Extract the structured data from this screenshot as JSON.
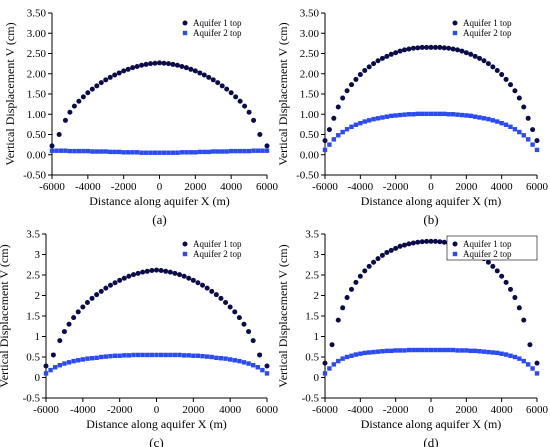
{
  "colors": {
    "aquifer1": "#0b0b4a",
    "aquifer2": "#2a4bf0",
    "axis": "#000000"
  },
  "chart_data": [
    {
      "type": "scatter",
      "caption": "(a)",
      "xlabel": "Distance along aquifer X (m)",
      "ylabel": "Vertical Displacement V (cm)",
      "xlim": [
        -6000,
        6000
      ],
      "ylim": [
        -0.5,
        3.5
      ],
      "xticks": [
        "-6000",
        "-4000",
        "-2000",
        "0",
        "2000",
        "4000",
        "6000"
      ],
      "yticks": [
        "-0.50",
        "0.00",
        "0.50",
        "1.00",
        "1.50",
        "2.00",
        "2.50",
        "3.00",
        "3.50"
      ],
      "legend_position": "top-right",
      "series": [
        {
          "name": "Aquifer 1 top",
          "marker": "circle",
          "x": [
            -6000,
            -5600,
            -5250,
            -5000,
            -4750,
            -4500,
            -4250,
            -4000,
            -3750,
            -3500,
            -3250,
            -3000,
            -2750,
            -2500,
            -2250,
            -2000,
            -1750,
            -1500,
            -1250,
            -1000,
            -750,
            -500,
            -250,
            0,
            250,
            500,
            750,
            1000,
            1250,
            1500,
            1750,
            2000,
            2250,
            2500,
            2750,
            3000,
            3250,
            3500,
            3750,
            4000,
            4250,
            4500,
            4750,
            5000,
            5250,
            5600,
            6000
          ],
          "y": [
            0.22,
            0.5,
            0.85,
            1.05,
            1.2,
            1.32,
            1.43,
            1.53,
            1.62,
            1.7,
            1.78,
            1.85,
            1.91,
            1.97,
            2.02,
            2.07,
            2.11,
            2.15,
            2.18,
            2.21,
            2.23,
            2.25,
            2.26,
            2.27,
            2.26,
            2.25,
            2.23,
            2.21,
            2.18,
            2.15,
            2.11,
            2.07,
            2.02,
            1.97,
            1.91,
            1.85,
            1.78,
            1.7,
            1.62,
            1.53,
            1.43,
            1.32,
            1.2,
            1.05,
            0.85,
            0.5,
            0.22
          ]
        },
        {
          "name": "Aquifer 2 top",
          "marker": "square",
          "x": [
            -6000,
            -5750,
            -5500,
            -5250,
            -5000,
            -4750,
            -4500,
            -4250,
            -4000,
            -3750,
            -3500,
            -3250,
            -3000,
            -2750,
            -2500,
            -2250,
            -2000,
            -1750,
            -1500,
            -1250,
            -1000,
            -750,
            -500,
            -250,
            0,
            250,
            500,
            750,
            1000,
            1250,
            1500,
            1750,
            2000,
            2250,
            2500,
            2750,
            3000,
            3250,
            3500,
            3750,
            4000,
            4250,
            4500,
            4750,
            5000,
            5250,
            5500,
            5750,
            6000
          ],
          "y": [
            0.1,
            0.1,
            0.1,
            0.1,
            0.09,
            0.09,
            0.09,
            0.09,
            0.09,
            0.08,
            0.08,
            0.08,
            0.08,
            0.07,
            0.07,
            0.07,
            0.06,
            0.06,
            0.06,
            0.06,
            0.05,
            0.05,
            0.05,
            0.05,
            0.05,
            0.05,
            0.05,
            0.05,
            0.05,
            0.06,
            0.06,
            0.06,
            0.06,
            0.07,
            0.07,
            0.07,
            0.08,
            0.08,
            0.08,
            0.08,
            0.09,
            0.09,
            0.09,
            0.09,
            0.09,
            0.1,
            0.1,
            0.1,
            0.1
          ]
        }
      ]
    },
    {
      "type": "scatter",
      "caption": "(b)",
      "xlabel": "Distance along aquifer X (m)",
      "ylabel": "Vertical Displacement V (cm)",
      "xlim": [
        -6000,
        6000
      ],
      "ylim": [
        -0.5,
        3.5
      ],
      "xticks": [
        "-6000",
        "-4000",
        "-2000",
        "0",
        "2000",
        "4000",
        "6000"
      ],
      "yticks": [
        "-0.50",
        "0.00",
        "0.50",
        "1.00",
        "1.50",
        "2.00",
        "2.50",
        "3.00",
        "3.50"
      ],
      "legend_position": "top-right",
      "series": [
        {
          "name": "Aquifer 1 top",
          "marker": "circle",
          "x": [
            -6000,
            -5750,
            -5500,
            -5250,
            -5000,
            -4750,
            -4500,
            -4250,
            -4000,
            -3750,
            -3500,
            -3250,
            -3000,
            -2750,
            -2500,
            -2250,
            -2000,
            -1750,
            -1500,
            -1250,
            -1000,
            -750,
            -500,
            -250,
            0,
            250,
            500,
            750,
            1000,
            1250,
            1500,
            1750,
            2000,
            2250,
            2500,
            2750,
            3000,
            3250,
            3500,
            3750,
            4000,
            4250,
            4500,
            4750,
            5000,
            5250,
            5500,
            5750,
            6000
          ],
          "y": [
            0.35,
            0.62,
            0.9,
            1.18,
            1.4,
            1.58,
            1.73,
            1.86,
            1.98,
            2.08,
            2.17,
            2.25,
            2.32,
            2.38,
            2.43,
            2.48,
            2.52,
            2.56,
            2.59,
            2.61,
            2.63,
            2.64,
            2.65,
            2.65,
            2.65,
            2.65,
            2.65,
            2.64,
            2.63,
            2.61,
            2.59,
            2.56,
            2.52,
            2.48,
            2.43,
            2.38,
            2.32,
            2.25,
            2.17,
            2.08,
            1.98,
            1.86,
            1.73,
            1.58,
            1.4,
            1.18,
            0.9,
            0.62,
            0.35
          ]
        },
        {
          "name": "Aquifer 2 top",
          "marker": "square",
          "x": [
            -6000,
            -5750,
            -5500,
            -5250,
            -5000,
            -4750,
            -4500,
            -4250,
            -4000,
            -3750,
            -3500,
            -3250,
            -3000,
            -2750,
            -2500,
            -2250,
            -2000,
            -1750,
            -1500,
            -1250,
            -1000,
            -750,
            -500,
            -250,
            0,
            250,
            500,
            750,
            1000,
            1250,
            1500,
            1750,
            2000,
            2250,
            2500,
            2750,
            3000,
            3250,
            3500,
            3750,
            4000,
            4250,
            4500,
            4750,
            5000,
            5250,
            5500,
            5750,
            6000
          ],
          "y": [
            0.12,
            0.25,
            0.38,
            0.48,
            0.56,
            0.63,
            0.69,
            0.74,
            0.78,
            0.82,
            0.85,
            0.88,
            0.9,
            0.92,
            0.94,
            0.96,
            0.97,
            0.98,
            0.99,
            1.0,
            1.0,
            1.01,
            1.01,
            1.01,
            1.01,
            1.01,
            1.01,
            1.01,
            1.0,
            1.0,
            0.99,
            0.98,
            0.97,
            0.96,
            0.94,
            0.92,
            0.9,
            0.88,
            0.85,
            0.82,
            0.78,
            0.74,
            0.69,
            0.63,
            0.56,
            0.48,
            0.38,
            0.25,
            0.12
          ]
        }
      ]
    },
    {
      "type": "scatter",
      "caption": "(c)",
      "xlabel": "Distance along aquifer X (m)",
      "ylabel": "Vertical Displacement V (cm)",
      "xlim": [
        -6000,
        6000
      ],
      "ylim": [
        -0.5,
        3.5
      ],
      "xticks": [
        "-6000",
        "-4000",
        "-2000",
        "0",
        "2000",
        "4000",
        "6000"
      ],
      "yticks": [
        "-0.5",
        "0",
        "0.5",
        "1",
        "1.5",
        "2",
        "2.5",
        "3",
        "3.5"
      ],
      "legend_position": "top-right",
      "series": [
        {
          "name": "Aquifer 1 top",
          "marker": "circle",
          "x": [
            -6000,
            -5600,
            -5250,
            -5000,
            -4750,
            -4500,
            -4250,
            -4000,
            -3750,
            -3500,
            -3250,
            -3000,
            -2750,
            -2500,
            -2250,
            -2000,
            -1750,
            -1500,
            -1250,
            -1000,
            -750,
            -500,
            -250,
            0,
            250,
            500,
            750,
            1000,
            1250,
            1500,
            1750,
            2000,
            2250,
            2500,
            2750,
            3000,
            3250,
            3500,
            3750,
            4000,
            4250,
            4500,
            4750,
            5000,
            5250,
            5600,
            6000
          ],
          "y": [
            0.28,
            0.55,
            0.9,
            1.12,
            1.3,
            1.46,
            1.6,
            1.72,
            1.83,
            1.93,
            2.02,
            2.1,
            2.18,
            2.25,
            2.31,
            2.37,
            2.42,
            2.47,
            2.51,
            2.54,
            2.57,
            2.59,
            2.61,
            2.62,
            2.61,
            2.59,
            2.57,
            2.54,
            2.51,
            2.47,
            2.42,
            2.37,
            2.31,
            2.25,
            2.18,
            2.1,
            2.02,
            1.93,
            1.83,
            1.72,
            1.6,
            1.46,
            1.3,
            1.12,
            0.9,
            0.55,
            0.28
          ]
        },
        {
          "name": "Aquifer 2 top",
          "marker": "square",
          "x": [
            -6000,
            -5750,
            -5500,
            -5250,
            -5000,
            -4750,
            -4500,
            -4250,
            -4000,
            -3750,
            -3500,
            -3250,
            -3000,
            -2750,
            -2500,
            -2250,
            -2000,
            -1750,
            -1500,
            -1250,
            -1000,
            -750,
            -500,
            -250,
            0,
            250,
            500,
            750,
            1000,
            1250,
            1500,
            1750,
            2000,
            2250,
            2500,
            2750,
            3000,
            3250,
            3500,
            3750,
            4000,
            4250,
            4500,
            4750,
            5000,
            5250,
            5500,
            5750,
            6000
          ],
          "y": [
            0.1,
            0.18,
            0.25,
            0.3,
            0.34,
            0.37,
            0.4,
            0.42,
            0.44,
            0.46,
            0.47,
            0.48,
            0.5,
            0.51,
            0.52,
            0.53,
            0.53,
            0.54,
            0.54,
            0.55,
            0.55,
            0.55,
            0.55,
            0.55,
            0.55,
            0.55,
            0.55,
            0.55,
            0.55,
            0.55,
            0.54,
            0.54,
            0.53,
            0.53,
            0.52,
            0.51,
            0.5,
            0.48,
            0.47,
            0.46,
            0.44,
            0.42,
            0.4,
            0.37,
            0.34,
            0.3,
            0.25,
            0.18,
            0.1
          ]
        }
      ]
    },
    {
      "type": "scatter",
      "caption": "(d)",
      "xlabel": "Distance along aquifer X (m)",
      "ylabel": "Vertical Displacement V (cm)",
      "xlim": [
        -6000,
        6000
      ],
      "ylim": [
        -0.5,
        3.5
      ],
      "xticks": [
        "-6000",
        "-4000",
        "-2000",
        "0",
        "2000",
        "4000",
        "6000"
      ],
      "yticks": [
        "-0.5",
        "0",
        "0.5",
        "1",
        "1.5",
        "2",
        "2.5",
        "3",
        "3.5"
      ],
      "legend_position": "top-right",
      "series": [
        {
          "name": "Aquifer 1 top",
          "marker": "circle",
          "x": [
            -6000,
            -5600,
            -5250,
            -5000,
            -4750,
            -4500,
            -4250,
            -4000,
            -3750,
            -3500,
            -3250,
            -3000,
            -2750,
            -2500,
            -2250,
            -2000,
            -1750,
            -1500,
            -1250,
            -1000,
            -750,
            -500,
            -250,
            0,
            250,
            500,
            750,
            1000,
            1250,
            1500,
            1750,
            2000,
            2250,
            2500,
            2750,
            3000,
            3250,
            3500,
            3750,
            4000,
            4250,
            4500,
            4750,
            5000,
            5250,
            5600,
            6000
          ],
          "y": [
            0.35,
            0.8,
            1.4,
            1.7,
            1.95,
            2.15,
            2.32,
            2.47,
            2.6,
            2.71,
            2.81,
            2.9,
            2.98,
            3.05,
            3.1,
            3.15,
            3.2,
            3.23,
            3.26,
            3.28,
            3.3,
            3.31,
            3.32,
            3.32,
            3.32,
            3.31,
            3.3,
            3.28,
            3.26,
            3.23,
            3.2,
            3.15,
            3.1,
            3.05,
            2.98,
            2.9,
            2.81,
            2.71,
            2.6,
            2.47,
            2.32,
            2.15,
            1.95,
            1.7,
            1.4,
            0.8,
            0.35
          ]
        },
        {
          "name": "Aquifer 2 top",
          "marker": "square",
          "x": [
            -6000,
            -5750,
            -5500,
            -5250,
            -5000,
            -4750,
            -4500,
            -4250,
            -4000,
            -3750,
            -3500,
            -3250,
            -3000,
            -2750,
            -2500,
            -2250,
            -2000,
            -1750,
            -1500,
            -1250,
            -1000,
            -750,
            -500,
            -250,
            0,
            250,
            500,
            750,
            1000,
            1250,
            1500,
            1750,
            2000,
            2250,
            2500,
            2750,
            3000,
            3250,
            3500,
            3750,
            4000,
            4250,
            4500,
            4750,
            5000,
            5250,
            5500,
            5750,
            6000
          ],
          "y": [
            0.1,
            0.22,
            0.32,
            0.4,
            0.46,
            0.5,
            0.53,
            0.56,
            0.58,
            0.6,
            0.61,
            0.62,
            0.63,
            0.64,
            0.65,
            0.65,
            0.66,
            0.66,
            0.66,
            0.67,
            0.67,
            0.67,
            0.67,
            0.67,
            0.67,
            0.67,
            0.67,
            0.67,
            0.67,
            0.67,
            0.66,
            0.66,
            0.66,
            0.65,
            0.65,
            0.64,
            0.63,
            0.62,
            0.61,
            0.6,
            0.58,
            0.56,
            0.53,
            0.5,
            0.46,
            0.4,
            0.32,
            0.22,
            0.1
          ]
        }
      ]
    }
  ]
}
